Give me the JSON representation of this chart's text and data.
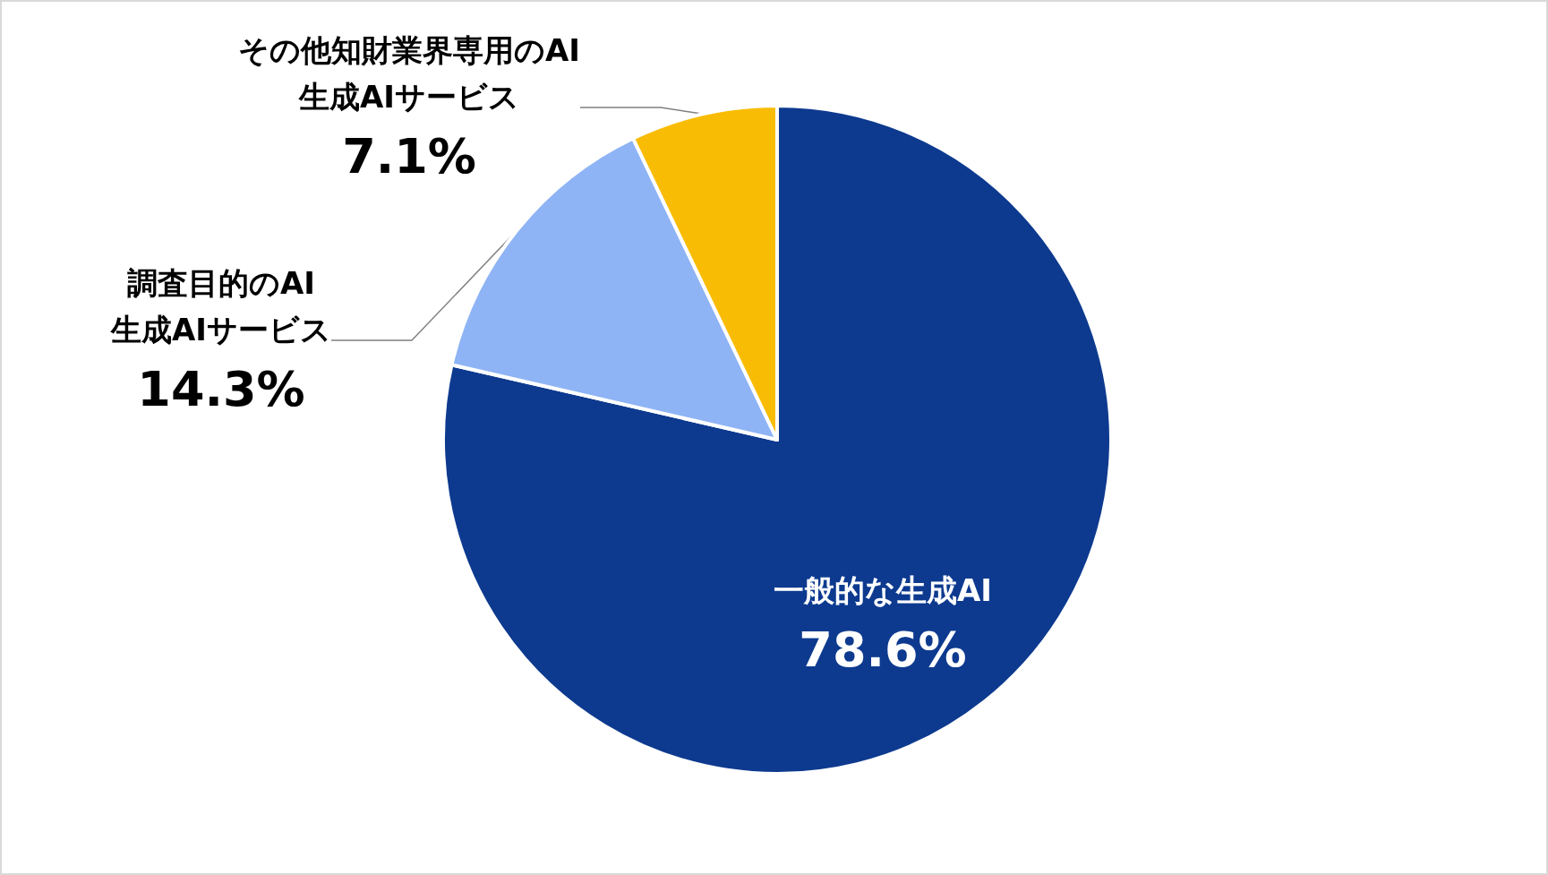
{
  "chart_data": {
    "type": "pie",
    "categories": [
      "一般的な生成AI",
      "調査目的のAI\n生成AIサービス",
      "その他知財業界専用のAI\n生成AIサービス"
    ],
    "values": [
      78.6,
      14.3,
      7.1
    ],
    "colors": [
      "#0d3a8f",
      "#8fb4f5",
      "#f9bc05"
    ],
    "value_labels": [
      "78.6%",
      "14.3%",
      "7.1%"
    ]
  }
}
